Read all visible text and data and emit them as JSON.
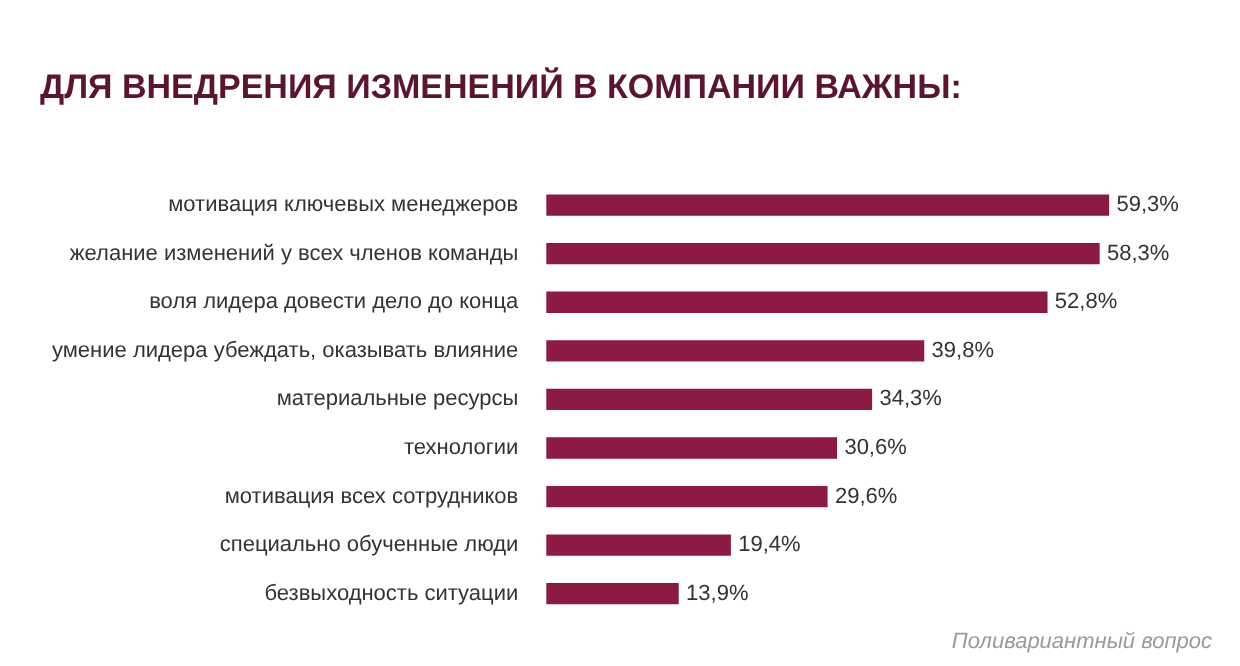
{
  "chart_data": {
    "type": "bar",
    "orientation": "horizontal",
    "title": "ДЛЯ ВНЕДРЕНИЯ ИЗМЕНЕНИЙ В КОМПАНИИ ВАЖНЫ:",
    "categories": [
      "мотивация ключевых менеджеров",
      "желание изменений у всех членов команды",
      "воля лидера довести дело до конца",
      "умение лидера убеждать, оказывать влияние",
      "материальные ресурсы",
      "технологии",
      "мотивация всех сотрудников",
      "специально обученные люди",
      "безвыходность ситуации"
    ],
    "values": [
      59.3,
      58.3,
      52.8,
      39.8,
      34.3,
      30.6,
      29.6,
      19.4,
      13.9
    ],
    "value_labels": [
      "59,3%",
      "58,3%",
      "52,8%",
      "39,8%",
      "34,3%",
      "30,6%",
      "29,6%",
      "19,4%",
      "13,9%"
    ],
    "color": "#8b1a45",
    "annotations": [
      "Поливариантный вопрос"
    ]
  }
}
